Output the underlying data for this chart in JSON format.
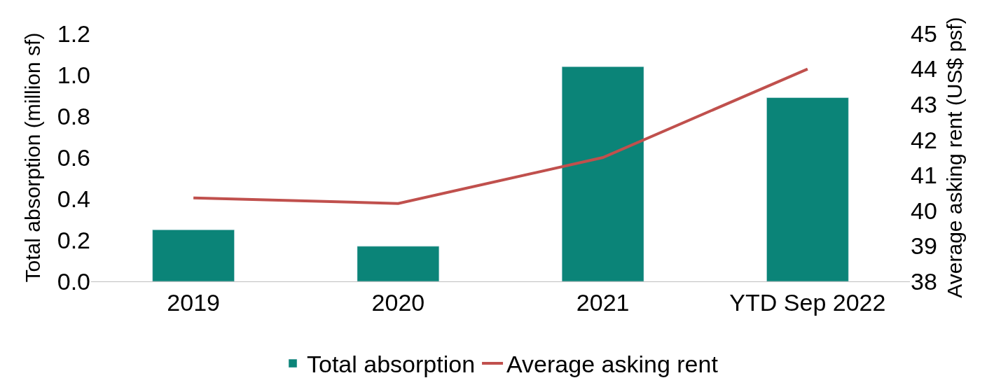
{
  "chart_data": {
    "type": "bar",
    "categories": [
      "2019",
      "2020",
      "2021",
      "YTD Sep 2022"
    ],
    "series": [
      {
        "name": "Total absorption",
        "color": "#0b8478",
        "values": [
          0.25,
          0.17,
          1.04,
          0.89
        ]
      },
      {
        "name": "Average asking rent",
        "type": "line",
        "axis": "y2",
        "color": "#c0504d",
        "values": [
          40.36,
          40.2,
          41.5,
          44.0
        ]
      }
    ],
    "ylabel": "Total absorption (million sf)",
    "y2label": "Average asking rent (US$ psf)",
    "ylim": [
      0,
      1.2
    ],
    "yticks": [
      {
        "value": 0,
        "label": "0.0"
      },
      0.2,
      0.4,
      0.6,
      0.8,
      {
        "value": 1.0,
        "label": "1.0"
      },
      1.2
    ],
    "y2lim": [
      38,
      45
    ],
    "y2ticks": [
      38,
      39,
      40,
      41,
      42,
      43,
      44,
      45
    ],
    "legend": "bottom",
    "marker": "none",
    "line_style": "solid"
  }
}
